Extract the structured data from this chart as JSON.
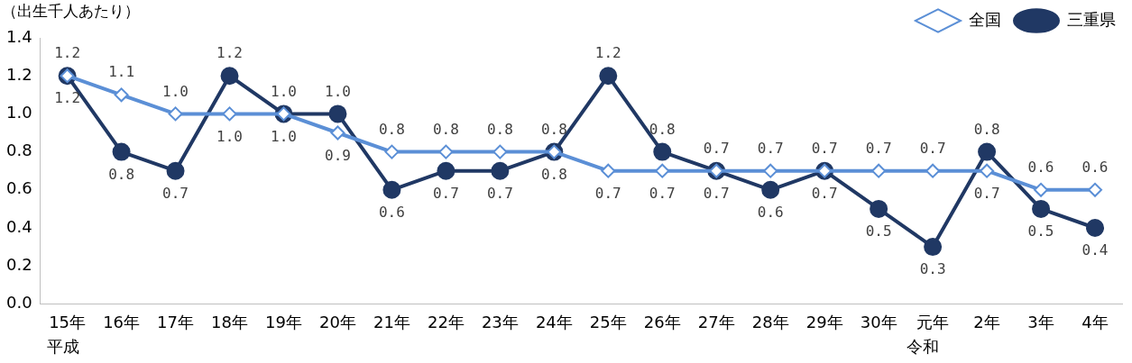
{
  "chart_data": {
    "type": "line",
    "ylabel": "（出生千人あたり）",
    "categories": [
      "15年",
      "16年",
      "17年",
      "18年",
      "19年",
      "20年",
      "21年",
      "22年",
      "23年",
      "24年",
      "25年",
      "26年",
      "27年",
      "28年",
      "29年",
      "30年",
      "元年",
      "2年",
      "3年",
      "4年"
    ],
    "series": [
      {
        "name": "全国",
        "color": "#5b8fd6",
        "marker": "diamond",
        "values": [
          1.2,
          1.1,
          1.0,
          1.0,
          1.0,
          0.9,
          0.8,
          0.8,
          0.8,
          0.8,
          0.7,
          0.7,
          0.7,
          0.7,
          0.7,
          0.7,
          0.7,
          0.7,
          0.6,
          0.6
        ],
        "value_labels": [
          "1.2",
          "1.1",
          "1.0",
          "1.0",
          "1.0",
          "0.9",
          "0.8",
          "0.8",
          "0.8",
          "0.8",
          "0.7",
          "0.7",
          "0.7",
          "0.7",
          "0.7",
          "0.7",
          "0.7",
          "0.7",
          "0.6",
          "0.6"
        ]
      },
      {
        "name": "三重県",
        "color": "#203864",
        "marker": "circle",
        "values": [
          1.2,
          0.8,
          0.7,
          1.2,
          1.0,
          1.0,
          0.6,
          0.7,
          0.7,
          0.8,
          1.2,
          0.8,
          0.7,
          0.6,
          0.7,
          0.5,
          0.3,
          0.8,
          0.5,
          0.4
        ],
        "value_labels": [
          "1.2",
          "0.8",
          "0.7",
          "1.2",
          "1.0",
          "1.0",
          "0.6",
          "0.7",
          "0.7",
          "0.8",
          "1.2",
          "0.8",
          "0.7",
          "0.6",
          "0.7",
          "0.5",
          "0.3",
          "0.8",
          "0.5",
          "0.4"
        ]
      }
    ],
    "ylim": [
      0,
      1.4
    ],
    "yticks": [
      {
        "value": 0,
        "label": "0.0"
      },
      {
        "value": 0.2,
        "label": "0.2"
      },
      {
        "value": 0.4,
        "label": "0.4"
      },
      {
        "value": 0.6,
        "label": "0.6"
      },
      {
        "value": 0.8,
        "label": "0.8"
      },
      {
        "value": 1.0,
        "label": "1.0"
      },
      {
        "value": 1.2,
        "label": "1.2"
      },
      {
        "value": 1.4,
        "label": "1.4"
      }
    ],
    "annotations": [
      "平成",
      "令和"
    ],
    "legend": "top right",
    "grid": false,
    "line_style": "solid"
  }
}
